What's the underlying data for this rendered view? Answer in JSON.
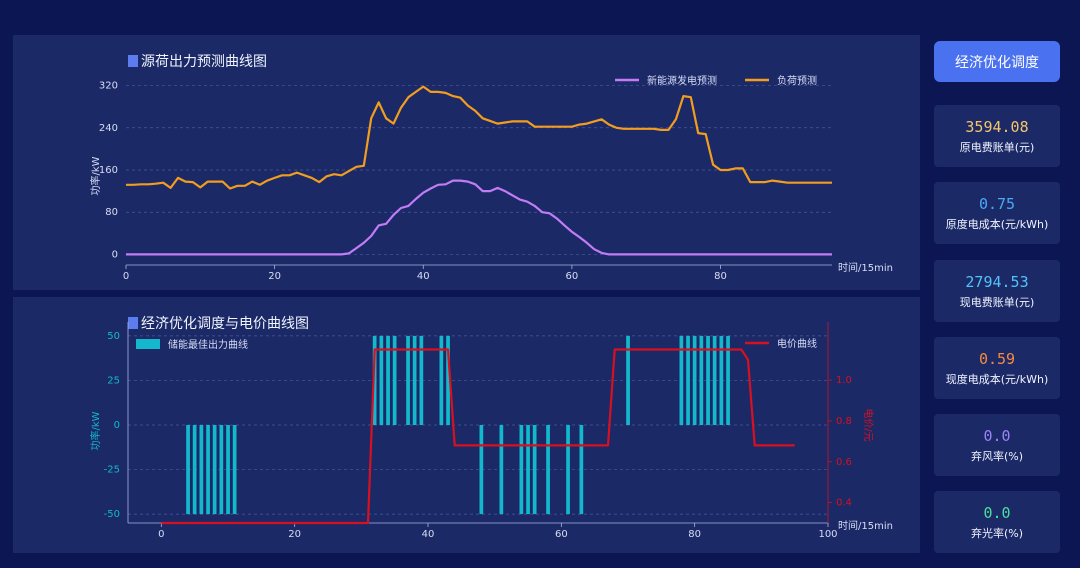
{
  "charts": [
    {
      "title": "源荷出力预测曲线图",
      "x_unit": "时间/15min",
      "y_label": "功率/kW",
      "legend": [
        "新能源发电预测",
        "负荷预测"
      ],
      "colors": {
        "pv": "#c27cf5",
        "load": "#f39d1f",
        "grid": "#4b5a9e"
      }
    },
    {
      "title": "经济优化调度与电价曲线图",
      "x_unit": "时间/15min",
      "y_label": "功率/kW",
      "y2_label": "电价/元",
      "legend": [
        "储能最佳出力曲线",
        "电价曲线"
      ],
      "colors": {
        "storage": "#13b8cc",
        "price": "#d8101f",
        "grid": "#4b5a9e"
      }
    }
  ],
  "chart_data": [
    {
      "type": "line",
      "title": "源荷出力预测曲线图",
      "ylabel": "功率/kW",
      "xlabel": "时间/15min",
      "xlim": [
        0,
        95
      ],
      "ylim": [
        -20,
        340
      ],
      "x_ticks": [
        0,
        20,
        40,
        60,
        80
      ],
      "y_ticks": [
        0,
        80,
        160,
        240,
        320
      ],
      "grid": true,
      "legend_position": "top-right",
      "series": [
        {
          "name": "新能源发电预测",
          "values": [
            0,
            0,
            0,
            0,
            0,
            0,
            0,
            0,
            0,
            0,
            0,
            0,
            0,
            0,
            0,
            0,
            0,
            0,
            0,
            0,
            0,
            0,
            0,
            0,
            0,
            0,
            0,
            0,
            0,
            0,
            2,
            12,
            22,
            35,
            55,
            58,
            75,
            88,
            92,
            105,
            117,
            125,
            132,
            133,
            140,
            140,
            138,
            133,
            120,
            120,
            126,
            120,
            112,
            104,
            100,
            92,
            80,
            78,
            68,
            55,
            43,
            33,
            22,
            10,
            3,
            0,
            0,
            0,
            0,
            0,
            0,
            0,
            0,
            0,
            0,
            0,
            0,
            0,
            0,
            0,
            0,
            0,
            0,
            0,
            0,
            0,
            0,
            0,
            0,
            0,
            0,
            0,
            0,
            0,
            0,
            0
          ]
        },
        {
          "name": "负荷预测",
          "values": [
            132,
            132,
            133,
            133,
            134,
            136,
            126,
            145,
            138,
            137,
            127,
            138,
            138,
            138,
            125,
            130,
            130,
            138,
            132,
            140,
            145,
            150,
            150,
            155,
            150,
            145,
            137,
            148,
            152,
            150,
            158,
            166,
            168,
            258,
            288,
            258,
            248,
            278,
            298,
            308,
            318,
            308,
            308,
            306,
            300,
            297,
            282,
            272,
            258,
            253,
            248,
            250,
            252,
            252,
            252,
            242,
            242,
            242,
            242,
            242,
            242,
            246,
            248,
            252,
            256,
            246,
            240,
            238,
            238,
            238,
            238,
            238,
            236,
            236,
            256,
            300,
            298,
            230,
            228,
            170,
            160,
            160,
            163,
            163,
            137,
            137,
            137,
            140,
            138,
            136,
            136,
            136,
            136,
            136,
            136,
            136
          ]
        }
      ]
    },
    {
      "type": "bar",
      "title": "经济优化调度与电价曲线图",
      "ylabel": "功率/kW",
      "y2label": "电价/元",
      "xlabel": "时间/15min",
      "xlim": [
        -5,
        100
      ],
      "ylim": [
        -55,
        55
      ],
      "y2lim": [
        0.3,
        1.26
      ],
      "x_ticks": [
        0,
        20,
        40,
        60,
        80,
        100
      ],
      "y_ticks": [
        50,
        25,
        0,
        -25,
        -50
      ],
      "y2_ticks": [
        0.4,
        0.6,
        0.8,
        1.0
      ],
      "grid": true,
      "legend_position": "top",
      "series": [
        {
          "name": "储能最佳出力曲线",
          "type": "bar",
          "values": [
            0,
            0,
            0,
            0,
            -50,
            -50,
            -50,
            -50,
            -50,
            -50,
            -50,
            -50,
            0,
            0,
            0,
            0,
            0,
            0,
            0,
            0,
            0,
            0,
            0,
            0,
            0,
            0,
            0,
            0,
            0,
            0,
            0,
            0,
            50,
            50,
            50,
            50,
            0,
            50,
            50,
            50,
            0,
            0,
            50,
            50,
            0,
            0,
            0,
            0,
            -50,
            0,
            0,
            -50,
            0,
            0,
            -50,
            -50,
            -50,
            0,
            -50,
            0,
            0,
            -50,
            0,
            -50,
            0,
            0,
            0,
            0,
            0,
            0,
            50,
            0,
            0,
            0,
            0,
            0,
            0,
            0,
            50,
            50,
            50,
            50,
            50,
            50,
            50,
            50,
            0,
            0,
            0,
            0,
            0,
            0,
            0,
            0,
            0,
            0
          ]
        },
        {
          "name": "电价曲线",
          "type": "line",
          "values": [
            0.3,
            0.3,
            0.3,
            0.3,
            0.3,
            0.3,
            0.3,
            0.3,
            0.3,
            0.3,
            0.3,
            0.3,
            0.3,
            0.3,
            0.3,
            0.3,
            0.3,
            0.3,
            0.3,
            0.3,
            0.3,
            0.3,
            0.3,
            0.3,
            0.3,
            0.3,
            0.3,
            0.3,
            0.3,
            0.3,
            0.3,
            0.3,
            1.15,
            1.15,
            1.15,
            1.15,
            1.15,
            1.15,
            1.15,
            1.15,
            1.15,
            1.15,
            1.15,
            1.15,
            0.68,
            0.68,
            0.68,
            0.68,
            0.68,
            0.68,
            0.68,
            0.68,
            0.68,
            0.68,
            0.68,
            0.68,
            0.68,
            0.68,
            0.68,
            0.68,
            0.68,
            0.68,
            0.68,
            0.68,
            0.68,
            0.68,
            0.68,
            0.68,
            1.15,
            1.15,
            1.15,
            1.15,
            1.15,
            1.15,
            1.15,
            1.15,
            1.15,
            1.15,
            1.15,
            1.15,
            1.15,
            1.15,
            1.15,
            1.15,
            1.15,
            1.15,
            1.15,
            1.15,
            1.1,
            0.68,
            0.68,
            0.68,
            0.68,
            0.68,
            0.68,
            0.68
          ]
        }
      ]
    }
  ],
  "sidebar": {
    "button_label": "经济优化调度",
    "cards": [
      {
        "value": "3594.08",
        "label": "原电费账单(元)",
        "color": "#f4c66a"
      },
      {
        "value": "0.75",
        "label": "原度电成本(元/kWh)",
        "color": "#4aa9f5"
      },
      {
        "value": "2794.53",
        "label": "现电费账单(元)",
        "color": "#52c3f7"
      },
      {
        "value": "0.59",
        "label": "现度电成本(元/kWh)",
        "color": "#f78a3e"
      },
      {
        "value": "0.0",
        "label": "弃风率(%)",
        "color": "#9b82f7"
      },
      {
        "value": "0.0",
        "label": "弃光率(%)",
        "color": "#49e09b"
      }
    ]
  }
}
